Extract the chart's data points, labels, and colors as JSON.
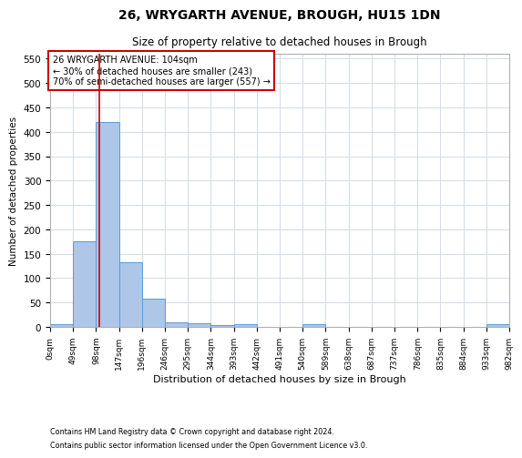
{
  "title1": "26, WRYGARTH AVENUE, BROUGH, HU15 1DN",
  "title2": "Size of property relative to detached houses in Brough",
  "xlabel": "Distribution of detached houses by size in Brough",
  "ylabel": "Number of detached properties",
  "bar_values": [
    5,
    175,
    420,
    132,
    58,
    9,
    8,
    3,
    5,
    0,
    0,
    5,
    0,
    0,
    0,
    0,
    0,
    0,
    0,
    5
  ],
  "bin_labels": [
    "0sqm",
    "49sqm",
    "98sqm",
    "147sqm",
    "196sqm",
    "246sqm",
    "295sqm",
    "344sqm",
    "393sqm",
    "442sqm",
    "491sqm",
    "540sqm",
    "589sqm",
    "638sqm",
    "687sqm",
    "737sqm",
    "786sqm",
    "835sqm",
    "884sqm",
    "933sqm",
    "982sqm"
  ],
  "bar_color": "#aec6e8",
  "bar_edge_color": "#5b9bd5",
  "property_line_x": 104,
  "annotation_title": "26 WRYGARTH AVENUE: 104sqm",
  "annotation_line1": "← 30% of detached houses are smaller (243)",
  "annotation_line2": "70% of semi-detached houses are larger (557) →",
  "annotation_box_color": "#cc0000",
  "ylim": [
    0,
    560
  ],
  "yticks": [
    0,
    50,
    100,
    150,
    200,
    250,
    300,
    350,
    400,
    450,
    500,
    550
  ],
  "footnote1": "Contains HM Land Registry data © Crown copyright and database right 2024.",
  "footnote2": "Contains public sector information licensed under the Open Government Licence v3.0.",
  "bg_color": "#ffffff",
  "grid_color": "#d0dce8",
  "bin_width": 49,
  "n_bars": 20
}
